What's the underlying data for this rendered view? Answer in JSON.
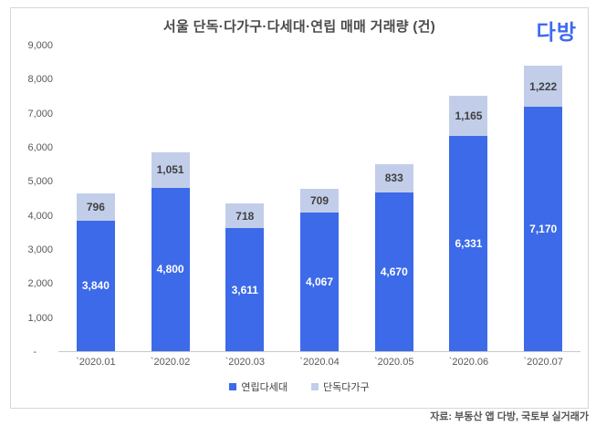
{
  "window": {
    "logo": "다방"
  },
  "chart_data": {
    "type": "bar",
    "stacked": true,
    "title": "서울 단독·다가구·다세대·연립 매매 거래량 (건)",
    "categories": [
      "`2020.01",
      "`2020.02",
      "`2020.03",
      "`2020.04",
      "`2020.05",
      "`2020.06",
      "`2020.07"
    ],
    "series": [
      {
        "name": "연립다세대",
        "color": "#3c6ae8",
        "label_color": "#ffffff",
        "values": [
          3840,
          4800,
          3611,
          4067,
          4670,
          6331,
          7170
        ]
      },
      {
        "name": "단독다가구",
        "color": "#c2cee9",
        "label_color": "#404040",
        "values": [
          796,
          1051,
          718,
          709,
          833,
          1165,
          1222
        ]
      }
    ],
    "totals": [
      4636,
      5851,
      4329,
      4776,
      5503,
      7496,
      8392
    ],
    "ylim": [
      0,
      9000
    ],
    "ytick_interval": 1000,
    "yticks_top_to_bottom": [
      "9,000",
      "8,000",
      "7,000",
      "6,000",
      "5,000",
      "4,000",
      "3,000",
      "2,000",
      "1,000",
      "-"
    ],
    "grid": false,
    "legend_position": "bottom",
    "axis_line_color": "#c9c9c9",
    "frame_border_color": "#d6d6d6",
    "title_color": "#4a4a4a",
    "tick_label_color": "#595959",
    "logo_color": "#3d6af0"
  },
  "footer": {
    "source": "자료: 부동산 앱 다방, 국토부 실거래가"
  }
}
